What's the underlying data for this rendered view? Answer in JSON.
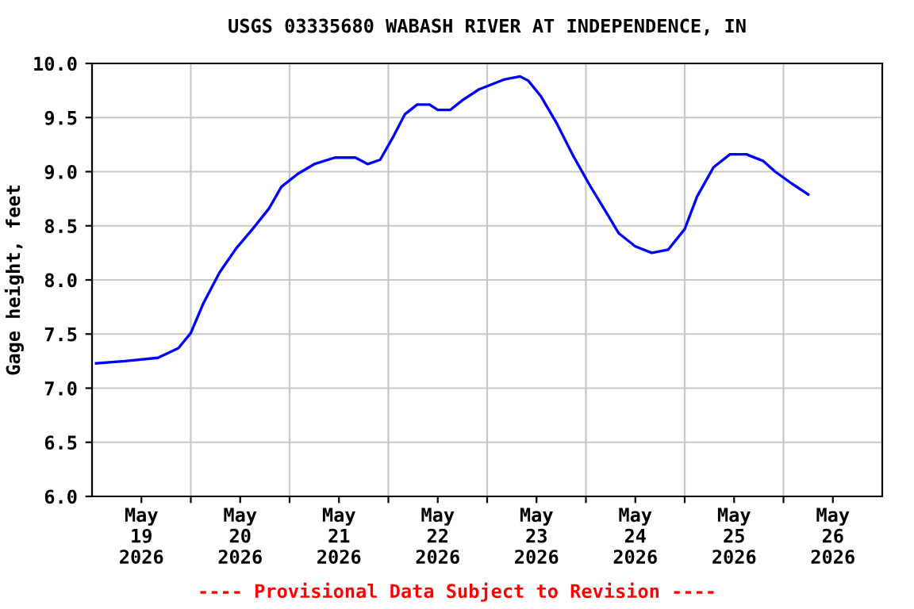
{
  "chart_data": {
    "type": "line",
    "title": "USGS 03335680 WABASH RIVER AT INDEPENDENCE, IN",
    "ylabel": "Gage height, feet",
    "annotations": [
      "---- Provisional Data Subject to Revision ----"
    ],
    "x": [
      "2026-05-19T01:00",
      "2026-05-19T08:00",
      "2026-05-19T16:00",
      "2026-05-19T21:00",
      "2026-05-20T00:00",
      "2026-05-20T03:00",
      "2026-05-20T07:00",
      "2026-05-20T11:00",
      "2026-05-20T15:00",
      "2026-05-20T19:00",
      "2026-05-20T22:00",
      "2026-05-21T02:00",
      "2026-05-21T06:00",
      "2026-05-21T11:00",
      "2026-05-21T16:00",
      "2026-05-21T19:00",
      "2026-05-21T22:00",
      "2026-05-22T01:00",
      "2026-05-22T04:00",
      "2026-05-22T07:00",
      "2026-05-22T10:00",
      "2026-05-22T12:00",
      "2026-05-22T15:00",
      "2026-05-22T18:00",
      "2026-05-22T22:00",
      "2026-05-23T04:00",
      "2026-05-23T08:00",
      "2026-05-23T10:00",
      "2026-05-23T13:00",
      "2026-05-23T17:00",
      "2026-05-23T21:00",
      "2026-05-24T01:00",
      "2026-05-24T05:00",
      "2026-05-24T08:00",
      "2026-05-24T12:00",
      "2026-05-24T16:00",
      "2026-05-24T20:00",
      "2026-05-25T00:00",
      "2026-05-25T03:00",
      "2026-05-25T07:00",
      "2026-05-25T11:00",
      "2026-05-25T15:00",
      "2026-05-25T19:00",
      "2026-05-25T22:00",
      "2026-05-26T02:00",
      "2026-05-26T06:00"
    ],
    "series": [
      {
        "color": "#0000ff",
        "values": [
          7.23,
          7.25,
          7.28,
          7.37,
          7.51,
          7.78,
          8.07,
          8.29,
          8.47,
          8.66,
          8.86,
          8.98,
          9.07,
          9.13,
          9.13,
          9.07,
          9.11,
          9.31,
          9.53,
          9.62,
          9.62,
          9.57,
          9.57,
          9.66,
          9.76,
          9.85,
          9.88,
          9.84,
          9.7,
          9.44,
          9.14,
          8.87,
          8.62,
          8.43,
          8.31,
          8.25,
          8.28,
          8.47,
          8.77,
          9.04,
          9.16,
          9.16,
          9.1,
          9.0,
          8.89,
          8.79
        ]
      }
    ],
    "xlim": [
      "2026-05-19T00:00",
      "2026-05-27T00:00"
    ],
    "xticks": [
      {
        "value": "2026-05-19T12:00",
        "label": "May\n19\n2026"
      },
      {
        "value": "2026-05-20T00:00",
        "label": null
      },
      {
        "value": "2026-05-20T12:00",
        "label": "May\n20\n2026"
      },
      {
        "value": "2026-05-21T00:00",
        "label": null
      },
      {
        "value": "2026-05-21T12:00",
        "label": "May\n21\n2026"
      },
      {
        "value": "2026-05-22T00:00",
        "label": null
      },
      {
        "value": "2026-05-22T12:00",
        "label": "May\n22\n2026"
      },
      {
        "value": "2026-05-23T00:00",
        "label": null
      },
      {
        "value": "2026-05-23T12:00",
        "label": "May\n23\n2026"
      },
      {
        "value": "2026-05-24T00:00",
        "label": null
      },
      {
        "value": "2026-05-24T12:00",
        "label": "May\n24\n2026"
      },
      {
        "value": "2026-05-25T00:00",
        "label": null
      },
      {
        "value": "2026-05-25T12:00",
        "label": "May\n25\n2026"
      },
      {
        "value": "2026-05-26T00:00",
        "label": null
      },
      {
        "value": "2026-05-26T12:00",
        "label": "May\n26\n2026"
      }
    ],
    "ylim": [
      6.0,
      10.0
    ],
    "yticks": [
      {
        "value": 6.0,
        "label": "6.0"
      },
      {
        "value": 6.5,
        "label": "6.5"
      },
      {
        "value": 7.0,
        "label": "7.0"
      },
      {
        "value": 7.5,
        "label": "7.5"
      },
      {
        "value": 8.0,
        "label": "8.0"
      },
      {
        "value": 8.5,
        "label": "8.5"
      },
      {
        "value": 9.0,
        "label": "9.0"
      },
      {
        "value": 9.5,
        "label": "9.5"
      },
      {
        "value": 10.0,
        "label": "10.0"
      }
    ],
    "grid": true,
    "legend": false,
    "marker": "none",
    "line_style": "solid"
  }
}
